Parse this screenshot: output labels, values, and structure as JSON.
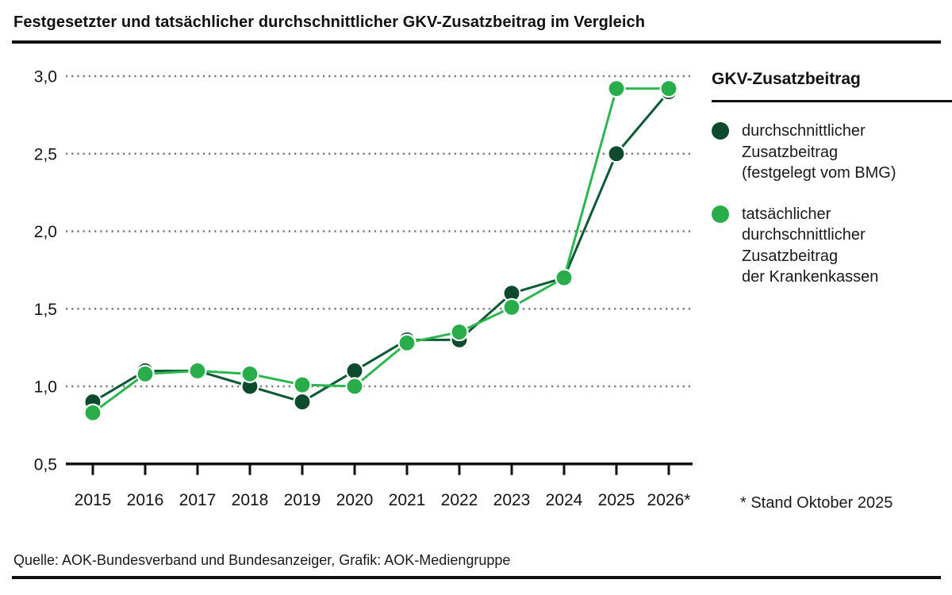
{
  "title": "Festgesetzter und tatsächlicher durchschnittlicher GKV-Zusatzbeitrag im Vergleich",
  "legend": {
    "title": "GKV-Zusatzbeitrag",
    "items": [
      {
        "color": "#0d4a2e",
        "label_lines": [
          "durchschnittlicher",
          "Zusatzbeitrag",
          "(festgelegt vom BMG)"
        ]
      },
      {
        "color": "#29ad4b",
        "label_lines": [
          "tatsächlicher",
          "durchschnittlicher",
          "Zusatzbeitrag",
          "der Krankenkassen"
        ]
      }
    ]
  },
  "footnote": "* Stand Oktober 2025",
  "source": "Quelle: AOK-Bundesverband und Bundesanzeiger, Grafik: AOK-Mediengruppe",
  "chart_data": {
    "type": "line",
    "title": "Festgesetzter und tatsächlicher durchschnittlicher GKV-Zusatzbeitrag im Vergleich",
    "x": [
      2015,
      2016,
      2017,
      2018,
      2019,
      2020,
      2021,
      2022,
      2023,
      2024,
      2025,
      2026
    ],
    "x_tick_labels": [
      "2015",
      "2016",
      "2017",
      "2018",
      "2019",
      "2020",
      "2021",
      "2022",
      "2023",
      "2024",
      "2025",
      "2026*"
    ],
    "series": [
      {
        "name": "durchschnittlicher Zusatzbeitrag (festgelegt vom BMG)",
        "color": "#0d4a2e",
        "line_color": "#0b5a33",
        "values": [
          0.9,
          1.1,
          1.1,
          1.0,
          0.9,
          1.1,
          1.3,
          1.3,
          1.6,
          1.7,
          2.5,
          2.9
        ]
      },
      {
        "name": "tatsächlicher durchschnittlicher Zusatzbeitrag der Krankenkassen",
        "color": "#29ad4b",
        "line_color": "#2db551",
        "values": [
          0.83,
          1.08,
          1.1,
          1.08,
          1.01,
          1.0,
          1.28,
          1.35,
          1.51,
          1.7,
          2.92,
          2.92
        ]
      }
    ],
    "xlabel": "",
    "ylabel": "",
    "ylim": [
      0.5,
      3.0
    ],
    "yticks": [
      0.5,
      1.0,
      1.5,
      2.0,
      2.5,
      3.0
    ],
    "ytick_labels": [
      "0,5",
      "1,0",
      "1,5",
      "2,0",
      "2,5",
      "3,0"
    ],
    "grid": "horizontal-dotted",
    "legend_position": "right"
  }
}
